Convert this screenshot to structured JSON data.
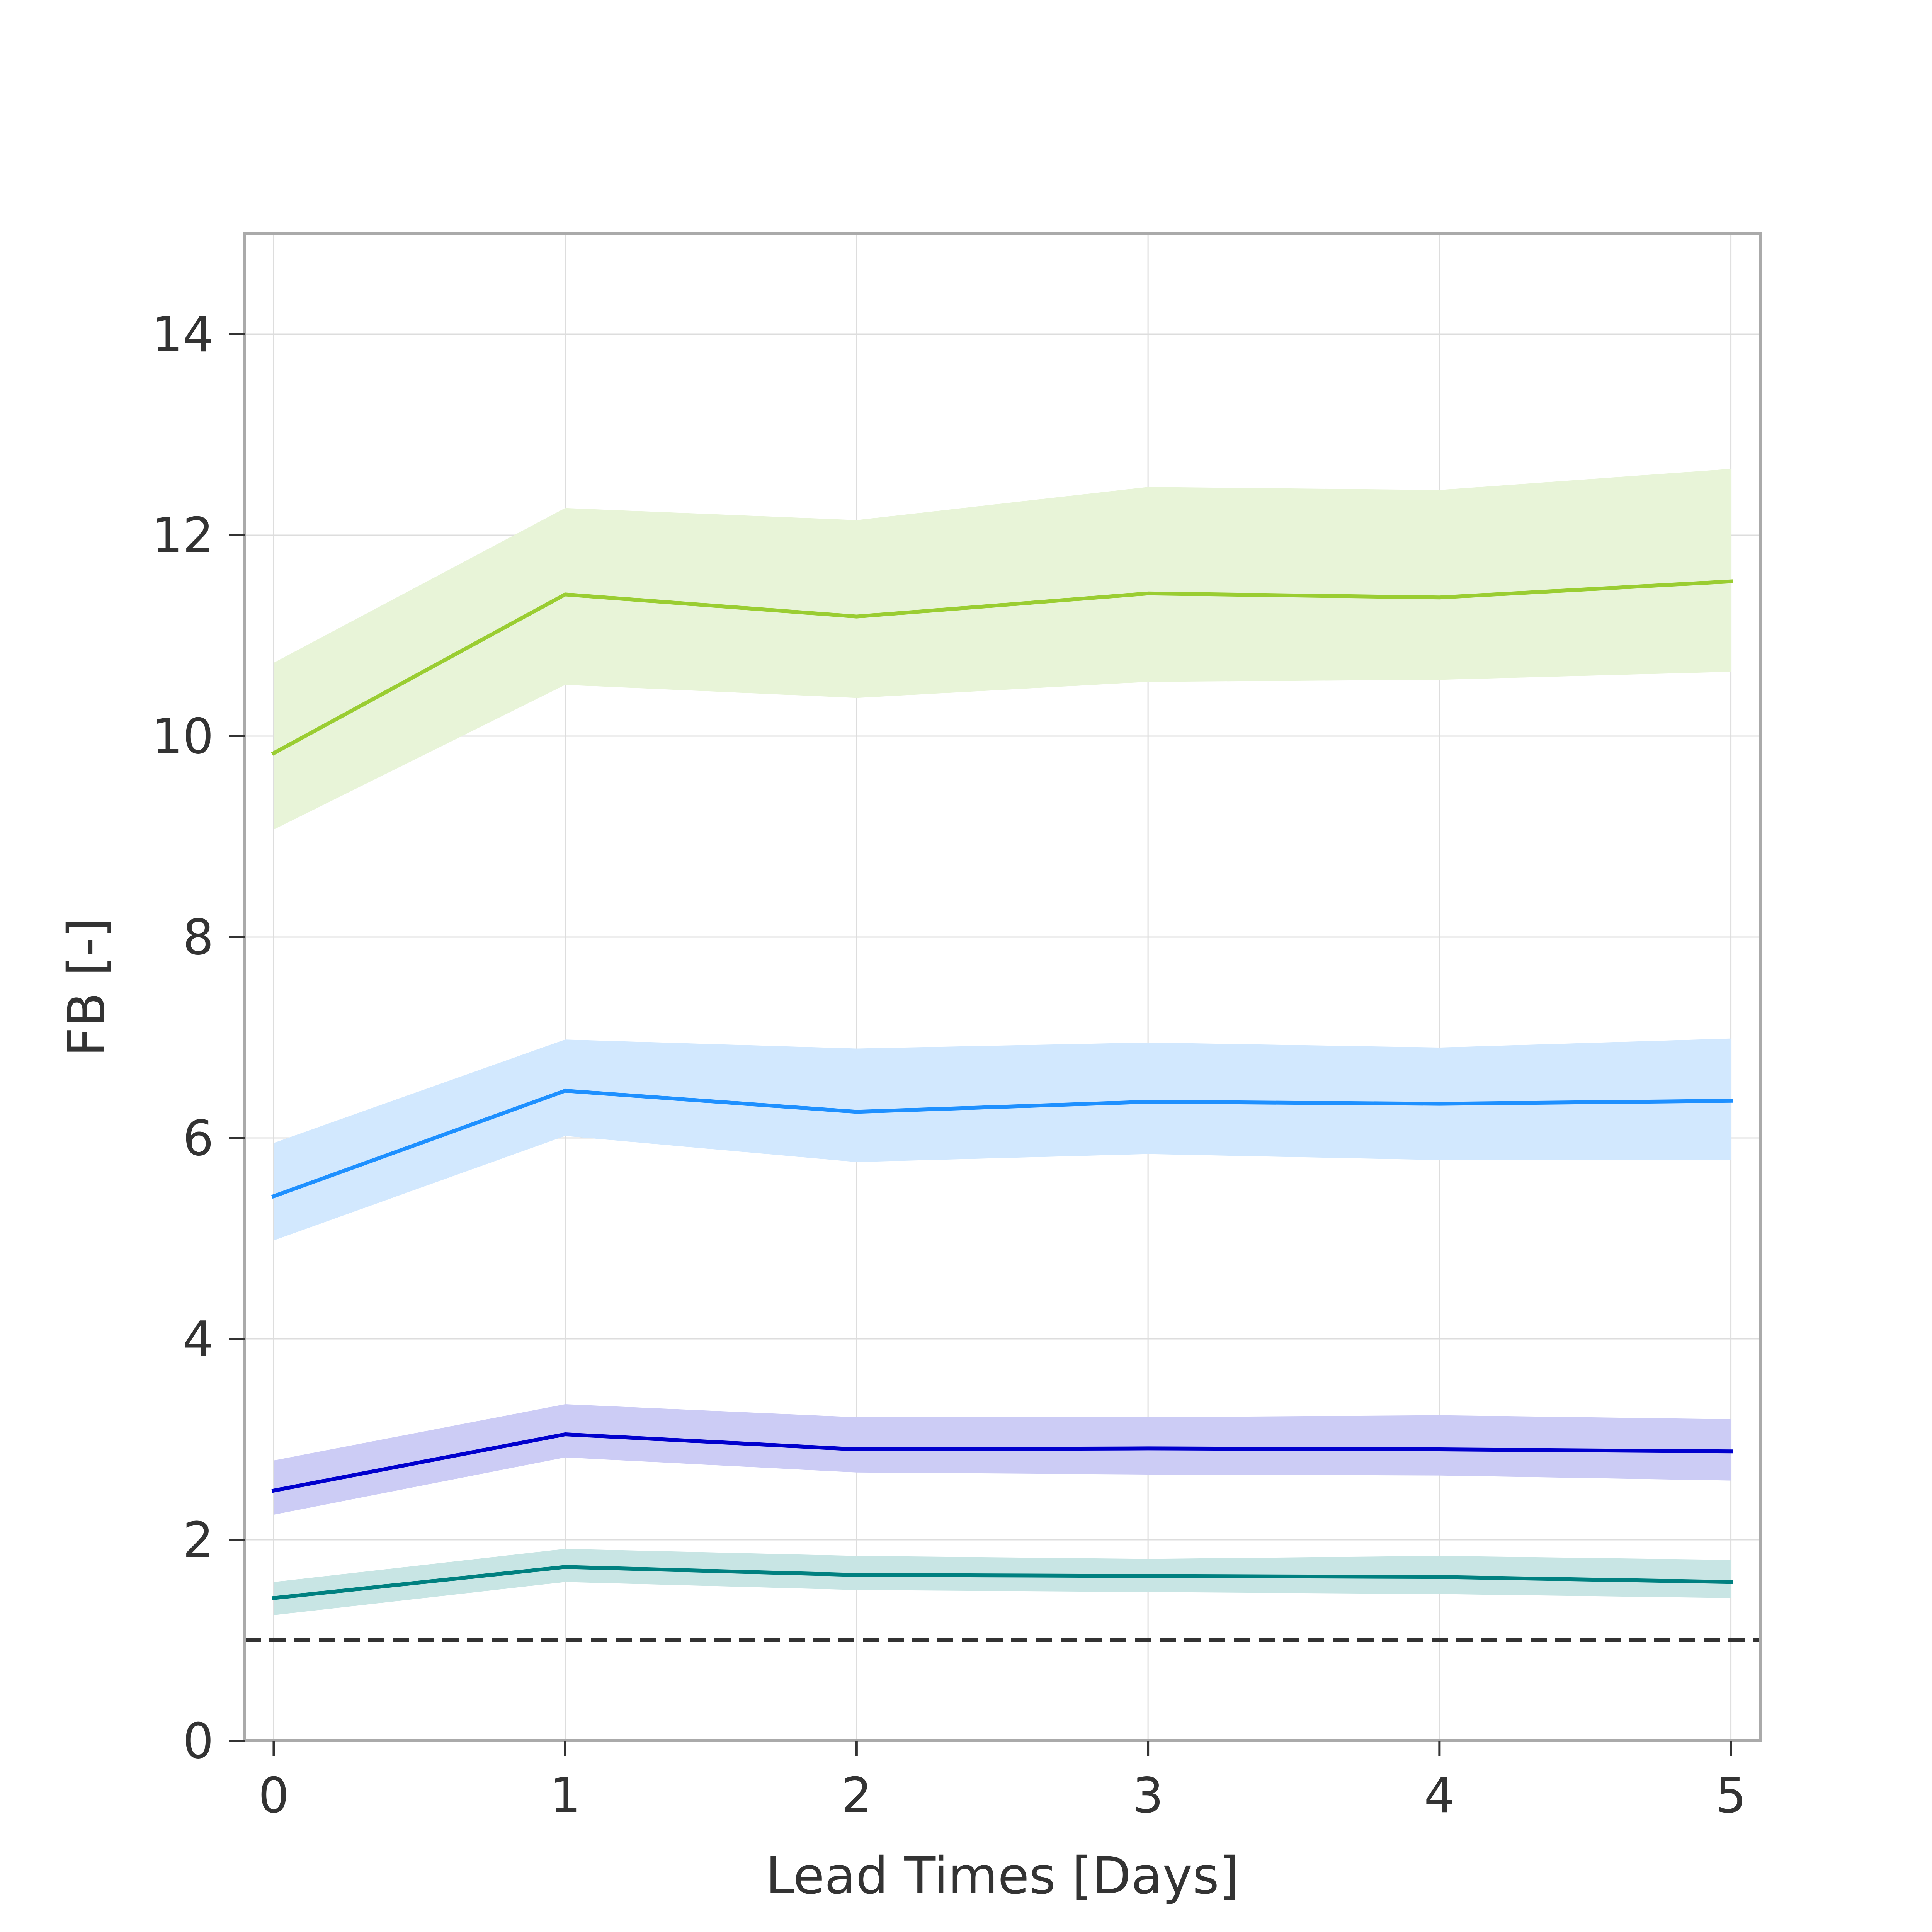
{
  "chart_data": {
    "type": "line",
    "title": "",
    "xlabel": "Lead Times [Days]",
    "ylabel": "FB [-]",
    "x": [
      0,
      1,
      2,
      3,
      4,
      5
    ],
    "x_ticks": [
      "0",
      "1",
      "2",
      "3",
      "4",
      "5"
    ],
    "y_ticks": [
      "0",
      "2",
      "4",
      "6",
      "8",
      "10",
      "12",
      "14"
    ],
    "xlim": [
      -0.1,
      5.1
    ],
    "ylim": [
      0,
      15
    ],
    "grid": true,
    "legend": "none",
    "reference_line": {
      "y": 1,
      "style": "dashed",
      "color": "#333333"
    },
    "series": [
      {
        "color": "#9ACD32",
        "band_color": "#E8F4D8",
        "values": [
          9.83,
          11.41,
          11.19,
          11.42,
          11.38,
          11.54
        ],
        "lower": [
          9.07,
          10.51,
          10.38,
          10.54,
          10.56,
          10.64
        ],
        "upper": [
          10.73,
          12.27,
          12.15,
          12.48,
          12.45,
          12.66
        ]
      },
      {
        "color": "#1E90FF",
        "band_color": "#D2E8FE",
        "values": [
          5.42,
          6.47,
          6.26,
          6.36,
          6.34,
          6.37
        ],
        "lower": [
          4.98,
          6.02,
          5.76,
          5.84,
          5.78,
          5.78
        ],
        "upper": [
          5.95,
          6.98,
          6.89,
          6.95,
          6.9,
          6.99
        ]
      },
      {
        "color": "#0000CD",
        "band_color": "#CCCCF5",
        "values": [
          2.49,
          3.05,
          2.9,
          2.91,
          2.9,
          2.88
        ],
        "lower": [
          2.25,
          2.82,
          2.67,
          2.65,
          2.64,
          2.59
        ],
        "upper": [
          2.79,
          3.35,
          3.22,
          3.22,
          3.24,
          3.2
        ]
      },
      {
        "color": "#008080",
        "band_color": "#C8E5E4",
        "values": [
          1.42,
          1.73,
          1.65,
          1.64,
          1.63,
          1.58
        ],
        "lower": [
          1.25,
          1.58,
          1.5,
          1.48,
          1.46,
          1.42
        ],
        "upper": [
          1.58,
          1.91,
          1.84,
          1.81,
          1.84,
          1.8
        ]
      }
    ]
  }
}
